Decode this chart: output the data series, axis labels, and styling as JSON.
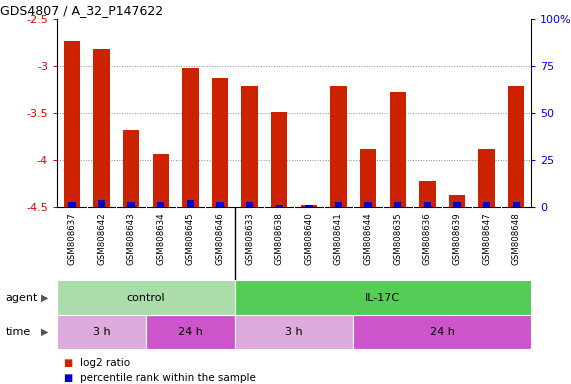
{
  "title": "GDS4807 / A_32_P147622",
  "samples": [
    "GSM808637",
    "GSM808642",
    "GSM808643",
    "GSM808634",
    "GSM808645",
    "GSM808646",
    "GSM808633",
    "GSM808638",
    "GSM808640",
    "GSM808641",
    "GSM808644",
    "GSM808635",
    "GSM808636",
    "GSM808639",
    "GSM808647",
    "GSM808648"
  ],
  "log2_ratio": [
    -2.73,
    -2.82,
    -3.68,
    -3.93,
    -3.02,
    -3.12,
    -3.21,
    -3.49,
    -4.48,
    -3.21,
    -3.88,
    -3.27,
    -4.22,
    -4.37,
    -3.88,
    -3.21
  ],
  "percentile": [
    3,
    4,
    3,
    3,
    4,
    3,
    3,
    1,
    1,
    3,
    3,
    3,
    3,
    3,
    3,
    3
  ],
  "ymin": -4.5,
  "ymax": -2.5,
  "yticks": [
    -2.5,
    -3.0,
    -3.5,
    -4.0,
    -4.5
  ],
  "ytick_labels": [
    "-2.5",
    "-3",
    "-3.5",
    "-4",
    "-4.5"
  ],
  "right_yticks": [
    0,
    25,
    50,
    75,
    100
  ],
  "right_ytick_labels": [
    "0",
    "25",
    "50",
    "75",
    "100%"
  ],
  "bar_color_red": "#cc2200",
  "bar_color_blue": "#0000cc",
  "agent_groups": [
    {
      "label": "control",
      "start": 0,
      "end": 6,
      "color": "#aaddaa"
    },
    {
      "label": "IL-17C",
      "start": 6,
      "end": 16,
      "color": "#55cc55"
    }
  ],
  "time_groups": [
    {
      "label": "3 h",
      "start": 0,
      "end": 3,
      "color": "#ddaadd"
    },
    {
      "label": "24 h",
      "start": 3,
      "end": 6,
      "color": "#cc55cc"
    },
    {
      "label": "3 h",
      "start": 6,
      "end": 10,
      "color": "#ddaadd"
    },
    {
      "label": "24 h",
      "start": 10,
      "end": 16,
      "color": "#cc55cc"
    }
  ],
  "legend_red_label": "log2 ratio",
  "legend_blue_label": "percentile rank within the sample",
  "background_color": "#ffffff",
  "grid_color": "#888888",
  "tick_color_left": "#dd0000",
  "tick_color_right": "#0000ee",
  "spine_color": "#000000",
  "sample_bg_color": "#cccccc",
  "sample_grid_color": "#ffffff"
}
